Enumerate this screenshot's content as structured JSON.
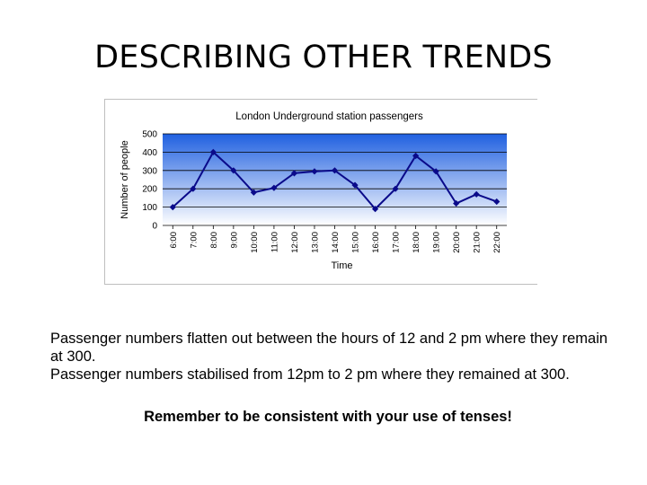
{
  "slide": {
    "title": "DESCRIBING OTHER TRENDS",
    "paragraphs": [
      "Passenger numbers flatten out between the hours of 12 and 2 pm where they remain at 300.",
      "Passenger numbers stabilised from 12pm to 2 pm where they remained at 300."
    ],
    "reminder": "Remember to be consistent with your use of tenses!"
  },
  "chart_data": {
    "type": "line",
    "title": "London Underground station passengers",
    "xlabel": "Time",
    "ylabel": "Number of people",
    "categories": [
      "6:00",
      "7:00",
      "8:00",
      "9:00",
      "10:00",
      "11:00",
      "12:00",
      "13:00",
      "14:00",
      "15:00",
      "16:00",
      "17:00",
      "18:00",
      "19:00",
      "20:00",
      "21:00",
      "22:00"
    ],
    "series": [
      {
        "values": [
          100,
          200,
          400,
          300,
          180,
          205,
          285,
          295,
          300,
          220,
          90,
          200,
          380,
          295,
          120,
          170,
          130
        ]
      }
    ],
    "ylim": [
      0,
      500
    ],
    "yticks": [
      0,
      100,
      200,
      300,
      400,
      500
    ],
    "grid": true,
    "legend": "none",
    "colors": {
      "line": "#0a0a8a",
      "marker": "#0a0a8a",
      "plot_top": "#2060e0",
      "plot_bottom": "#ffffff",
      "gridline": "#000000"
    }
  }
}
